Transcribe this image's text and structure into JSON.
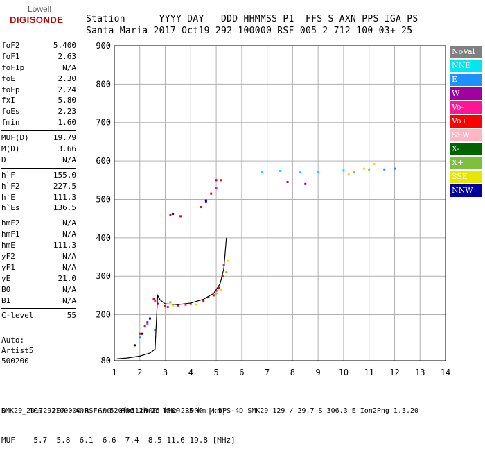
{
  "logo": {
    "line1": "Lowell",
    "line2": "DIGISONDE"
  },
  "header": {
    "row1": "Station      YYYY DAY   DDD HHMMSS P1  FFS S AXN PPS IGA PS",
    "row2": "Santa Maria 2017 Oct19 292 100000 RSF 005 2 712 100 03+ 25"
  },
  "params": [
    [
      [
        "foF2",
        "5.400"
      ],
      [
        "foF1",
        "2.63"
      ],
      [
        "foF1p",
        "N/A"
      ],
      [
        "foE",
        "2.30"
      ],
      [
        "foEp",
        "2.24"
      ],
      [
        "fxI",
        "5.80"
      ],
      [
        "foEs",
        "2.23"
      ],
      [
        "fmin",
        "1.60"
      ]
    ],
    [
      [
        "MUF(D)",
        "19.79"
      ],
      [
        "M(D)",
        "3.66"
      ],
      [
        "D",
        "N/A"
      ]
    ],
    [
      [
        "h`F",
        "155.0"
      ],
      [
        "h`F2",
        "227.5"
      ],
      [
        "h`E",
        "111.3"
      ],
      [
        "h`Es",
        "136.5"
      ]
    ],
    [
      [
        "hmF2",
        "N/A"
      ],
      [
        "hmF1",
        "N/A"
      ],
      [
        "hmE",
        "111.3"
      ],
      [
        "yF2",
        "N/A"
      ],
      [
        "yF1",
        "N/A"
      ],
      [
        "yE",
        "21.0"
      ],
      [
        "B0",
        "N/A"
      ],
      [
        "B1",
        "N/A"
      ]
    ],
    [
      [
        "C-level",
        "55"
      ]
    ]
  ],
  "auto": {
    "line1": "Auto:",
    "line2": "Artist5",
    "line3": "500200"
  },
  "legend": [
    {
      "label": "NoVal",
      "color": "#808080"
    },
    {
      "label": "NNE",
      "color": "#00e5ee"
    },
    {
      "label": "E",
      "color": "#1e90ff"
    },
    {
      "label": "W",
      "color": "#a000a0"
    },
    {
      "label": "Vo-",
      "color": "#ff1493"
    },
    {
      "label": "Vo+",
      "color": "#ff0000"
    },
    {
      "label": "SSW",
      "color": "#ffb6c1"
    },
    {
      "label": "X-",
      "color": "#006400"
    },
    {
      "label": "X+",
      "color": "#7fbf3f"
    },
    {
      "label": "SSE",
      "color": "#e6e600"
    },
    {
      "label": "NNW",
      "color": "#0000a0"
    }
  ],
  "bottom": {
    "d_row": "D     100  200  400  600  800 1000 1500 3000 [km]",
    "muf_row": "MUF    5.7  5.8  6.1  6.6  7.4  8.5 11.6 19.8 [MHz]"
  },
  "footer": "SMK29_2017292100000.RSF / 520fx512h 25 kHz 2.5 km / DPS-4D SMK29 129 / 29.7 S 306.3 E Ion2Png 1.3.20",
  "chart_data": {
    "type": "scatter",
    "xlim": [
      1,
      14
    ],
    "ylim": [
      80,
      900
    ],
    "xticks": [
      1,
      2,
      3,
      4,
      5,
      6,
      7,
      8,
      9,
      10,
      11,
      12,
      13,
      14
    ],
    "yticks": [
      80,
      200,
      300,
      400,
      500,
      600,
      700,
      800,
      900
    ],
    "grid": true,
    "series": [
      {
        "name": "Vo+",
        "color": "#ff0000",
        "points": [
          [
            2.55,
            240
          ],
          [
            2.7,
            228
          ],
          [
            3.0,
            222
          ],
          [
            3.5,
            224
          ],
          [
            4.0,
            228
          ],
          [
            4.5,
            236
          ],
          [
            4.9,
            250
          ],
          [
            5.1,
            270
          ],
          [
            5.25,
            300
          ],
          [
            2.0,
            150
          ],
          [
            2.2,
            170
          ],
          [
            3.2,
            460
          ],
          [
            3.6,
            456
          ],
          [
            4.4,
            480
          ],
          [
            4.8,
            515
          ],
          [
            5.2,
            550
          ]
        ]
      },
      {
        "name": "Vo-",
        "color": "#ff1493",
        "points": [
          [
            2.6,
            236
          ],
          [
            3.1,
            220
          ],
          [
            3.8,
            226
          ],
          [
            4.7,
            245
          ],
          [
            5.0,
            262
          ],
          [
            5.3,
            330
          ],
          [
            4.6,
            498
          ],
          [
            5.0,
            530
          ]
        ]
      },
      {
        "name": "X+",
        "color": "#7fbf3f",
        "points": [
          [
            3.2,
            232
          ],
          [
            4.0,
            230
          ],
          [
            5.0,
            255
          ],
          [
            5.4,
            310
          ],
          [
            10.4,
            570
          ],
          [
            11.0,
            578
          ]
        ]
      },
      {
        "name": "SSE",
        "color": "#e6e600",
        "points": [
          [
            3.3,
            224
          ],
          [
            4.2,
            226
          ],
          [
            5.2,
            265
          ],
          [
            5.45,
            340
          ],
          [
            10.2,
            565
          ],
          [
            10.8,
            580
          ],
          [
            11.2,
            592
          ]
        ]
      },
      {
        "name": "NNE",
        "color": "#00e5ee",
        "points": [
          [
            6.8,
            572
          ],
          [
            7.5,
            574
          ],
          [
            8.3,
            570
          ],
          [
            9.0,
            572
          ],
          [
            10.0,
            575
          ]
        ]
      },
      {
        "name": "W",
        "color": "#a000a0",
        "points": [
          [
            7.8,
            545
          ],
          [
            8.5,
            540
          ],
          [
            2.3,
            180
          ],
          [
            5.0,
            550
          ]
        ]
      },
      {
        "name": "E",
        "color": "#1e90ff",
        "points": [
          [
            2.0,
            140
          ],
          [
            2.3,
            175
          ],
          [
            2.6,
            160
          ],
          [
            12.0,
            580
          ],
          [
            11.6,
            578
          ]
        ]
      },
      {
        "name": "NNW",
        "color": "#0000a0",
        "points": [
          [
            1.8,
            120
          ],
          [
            2.1,
            150
          ],
          [
            2.4,
            190
          ],
          [
            3.3,
            462
          ],
          [
            4.6,
            495
          ]
        ]
      }
    ],
    "curve": {
      "name": "",
      "color": "#000000",
      "points": [
        [
          1.1,
          85
        ],
        [
          1.5,
          87
        ],
        [
          2.0,
          92
        ],
        [
          2.4,
          100
        ],
        [
          2.6,
          110
        ],
        [
          2.7,
          250
        ],
        [
          2.8,
          238
        ],
        [
          3.0,
          228
        ],
        [
          3.5,
          226
        ],
        [
          4.0,
          230
        ],
        [
          4.5,
          240
        ],
        [
          4.9,
          255
        ],
        [
          5.15,
          280
        ],
        [
          5.3,
          320
        ],
        [
          5.4,
          400
        ]
      ]
    }
  }
}
